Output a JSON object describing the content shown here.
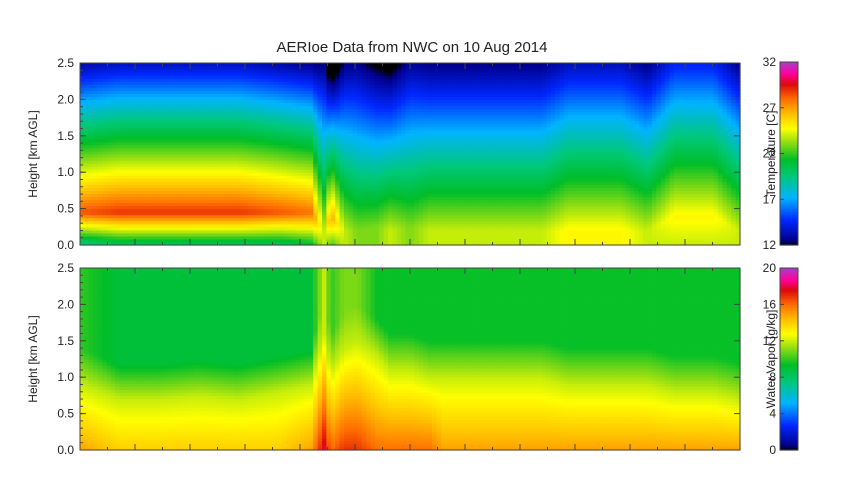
{
  "title": "AERIoe Data from NWC on 10 Aug 2014",
  "chart_data": [
    {
      "type": "heatmap",
      "variable": "temperature",
      "ylabel": "Height [km AGL]",
      "ylim": [
        0.0,
        2.5
      ],
      "yticks": [
        "0.0",
        "0.5",
        "1.0",
        "1.5",
        "2.0",
        "2.5"
      ],
      "colorbar": {
        "label": "Temperature [C]",
        "range": [
          12,
          32
        ],
        "ticks": [
          "12",
          "17",
          "22",
          "27",
          "32"
        ]
      },
      "x": [
        0.0,
        0.06,
        0.12,
        0.18,
        0.24,
        0.3,
        0.35,
        0.37,
        0.38,
        0.4,
        0.42,
        0.45,
        0.47,
        0.5,
        0.53,
        0.55,
        0.58,
        0.62,
        0.66,
        0.7,
        0.74,
        0.78,
        0.82,
        0.86,
        0.9,
        0.93,
        0.96,
        1.0
      ],
      "profiles": {
        "surface_c": [
          19,
          20,
          20,
          20,
          20,
          20,
          21,
          24,
          22,
          24,
          23,
          23,
          24,
          23,
          24,
          24,
          24,
          24,
          24,
          24,
          25,
          25,
          25,
          24,
          24,
          24,
          24,
          24
        ],
        "peak_c": [
          28.5,
          29,
          29,
          29,
          29,
          28.5,
          28,
          24,
          27,
          24,
          23,
          23,
          24,
          23,
          24,
          24,
          24,
          24,
          24,
          24,
          25,
          25,
          25,
          24,
          25,
          25,
          25,
          24
        ],
        "peak_height_km": [
          0.45,
          0.45,
          0.45,
          0.45,
          0.45,
          0.45,
          0.45,
          0.2,
          0.4,
          0.2,
          0.2,
          0.25,
          0.2,
          0.25,
          0.2,
          0.2,
          0.2,
          0.2,
          0.2,
          0.2,
          0.2,
          0.2,
          0.2,
          0.2,
          0.4,
          0.4,
          0.4,
          0.2
        ],
        "lapse_c_per_km": [
          7.5,
          7.5,
          7.5,
          7.5,
          7.5,
          7.5,
          7.5,
          5,
          8,
          5,
          4.5,
          5,
          5.5,
          4.5,
          5,
          5,
          5,
          5,
          5,
          5,
          5,
          5,
          5,
          5,
          5,
          5,
          5,
          5
        ]
      }
    },
    {
      "type": "heatmap",
      "variable": "water_vapor",
      "ylabel": "Height [km AGL]",
      "ylim": [
        0.0,
        2.5
      ],
      "yticks": [
        "0.0",
        "0.5",
        "1.0",
        "1.5",
        "2.0",
        "2.5"
      ],
      "colorbar": {
        "label": "Water Vapor [g/kg]",
        "range": [
          0,
          20
        ],
        "ticks": [
          "0",
          "4",
          "8",
          "12",
          "16",
          "20"
        ]
      },
      "x": [
        0.0,
        0.06,
        0.12,
        0.18,
        0.24,
        0.3,
        0.35,
        0.37,
        0.38,
        0.4,
        0.42,
        0.45,
        0.47,
        0.5,
        0.53,
        0.55,
        0.58,
        0.62,
        0.66,
        0.7,
        0.74,
        0.78,
        0.82,
        0.86,
        0.9,
        0.93,
        0.96,
        1.0
      ],
      "profiles": {
        "surface_gkg": [
          15,
          14,
          14,
          14,
          14,
          14,
          15,
          18,
          16,
          17,
          17,
          16,
          16,
          16,
          16,
          15,
          15,
          15,
          15,
          15,
          15,
          15,
          15,
          15,
          15,
          15,
          15,
          15
        ],
        "moist_top_km": [
          0.9,
          0.7,
          0.7,
          0.75,
          0.7,
          0.8,
          0.9,
          1.6,
          1.1,
          1.4,
          1.5,
          1.3,
          1.1,
          1.1,
          1.0,
          1.0,
          1.0,
          1.0,
          1.0,
          1.0,
          0.9,
          0.9,
          0.9,
          0.9,
          0.8,
          0.8,
          0.8,
          0.7
        ],
        "aloft_gkg": [
          10,
          9,
          9,
          9,
          9,
          9,
          9,
          12,
          10,
          11,
          11,
          9.5,
          9.5,
          9.5,
          9.5,
          9.5,
          9.5,
          9.5,
          9.5,
          9.5,
          9.5,
          9.5,
          9.5,
          9.5,
          9.5,
          9.5,
          9.5,
          9.5
        ]
      }
    }
  ]
}
